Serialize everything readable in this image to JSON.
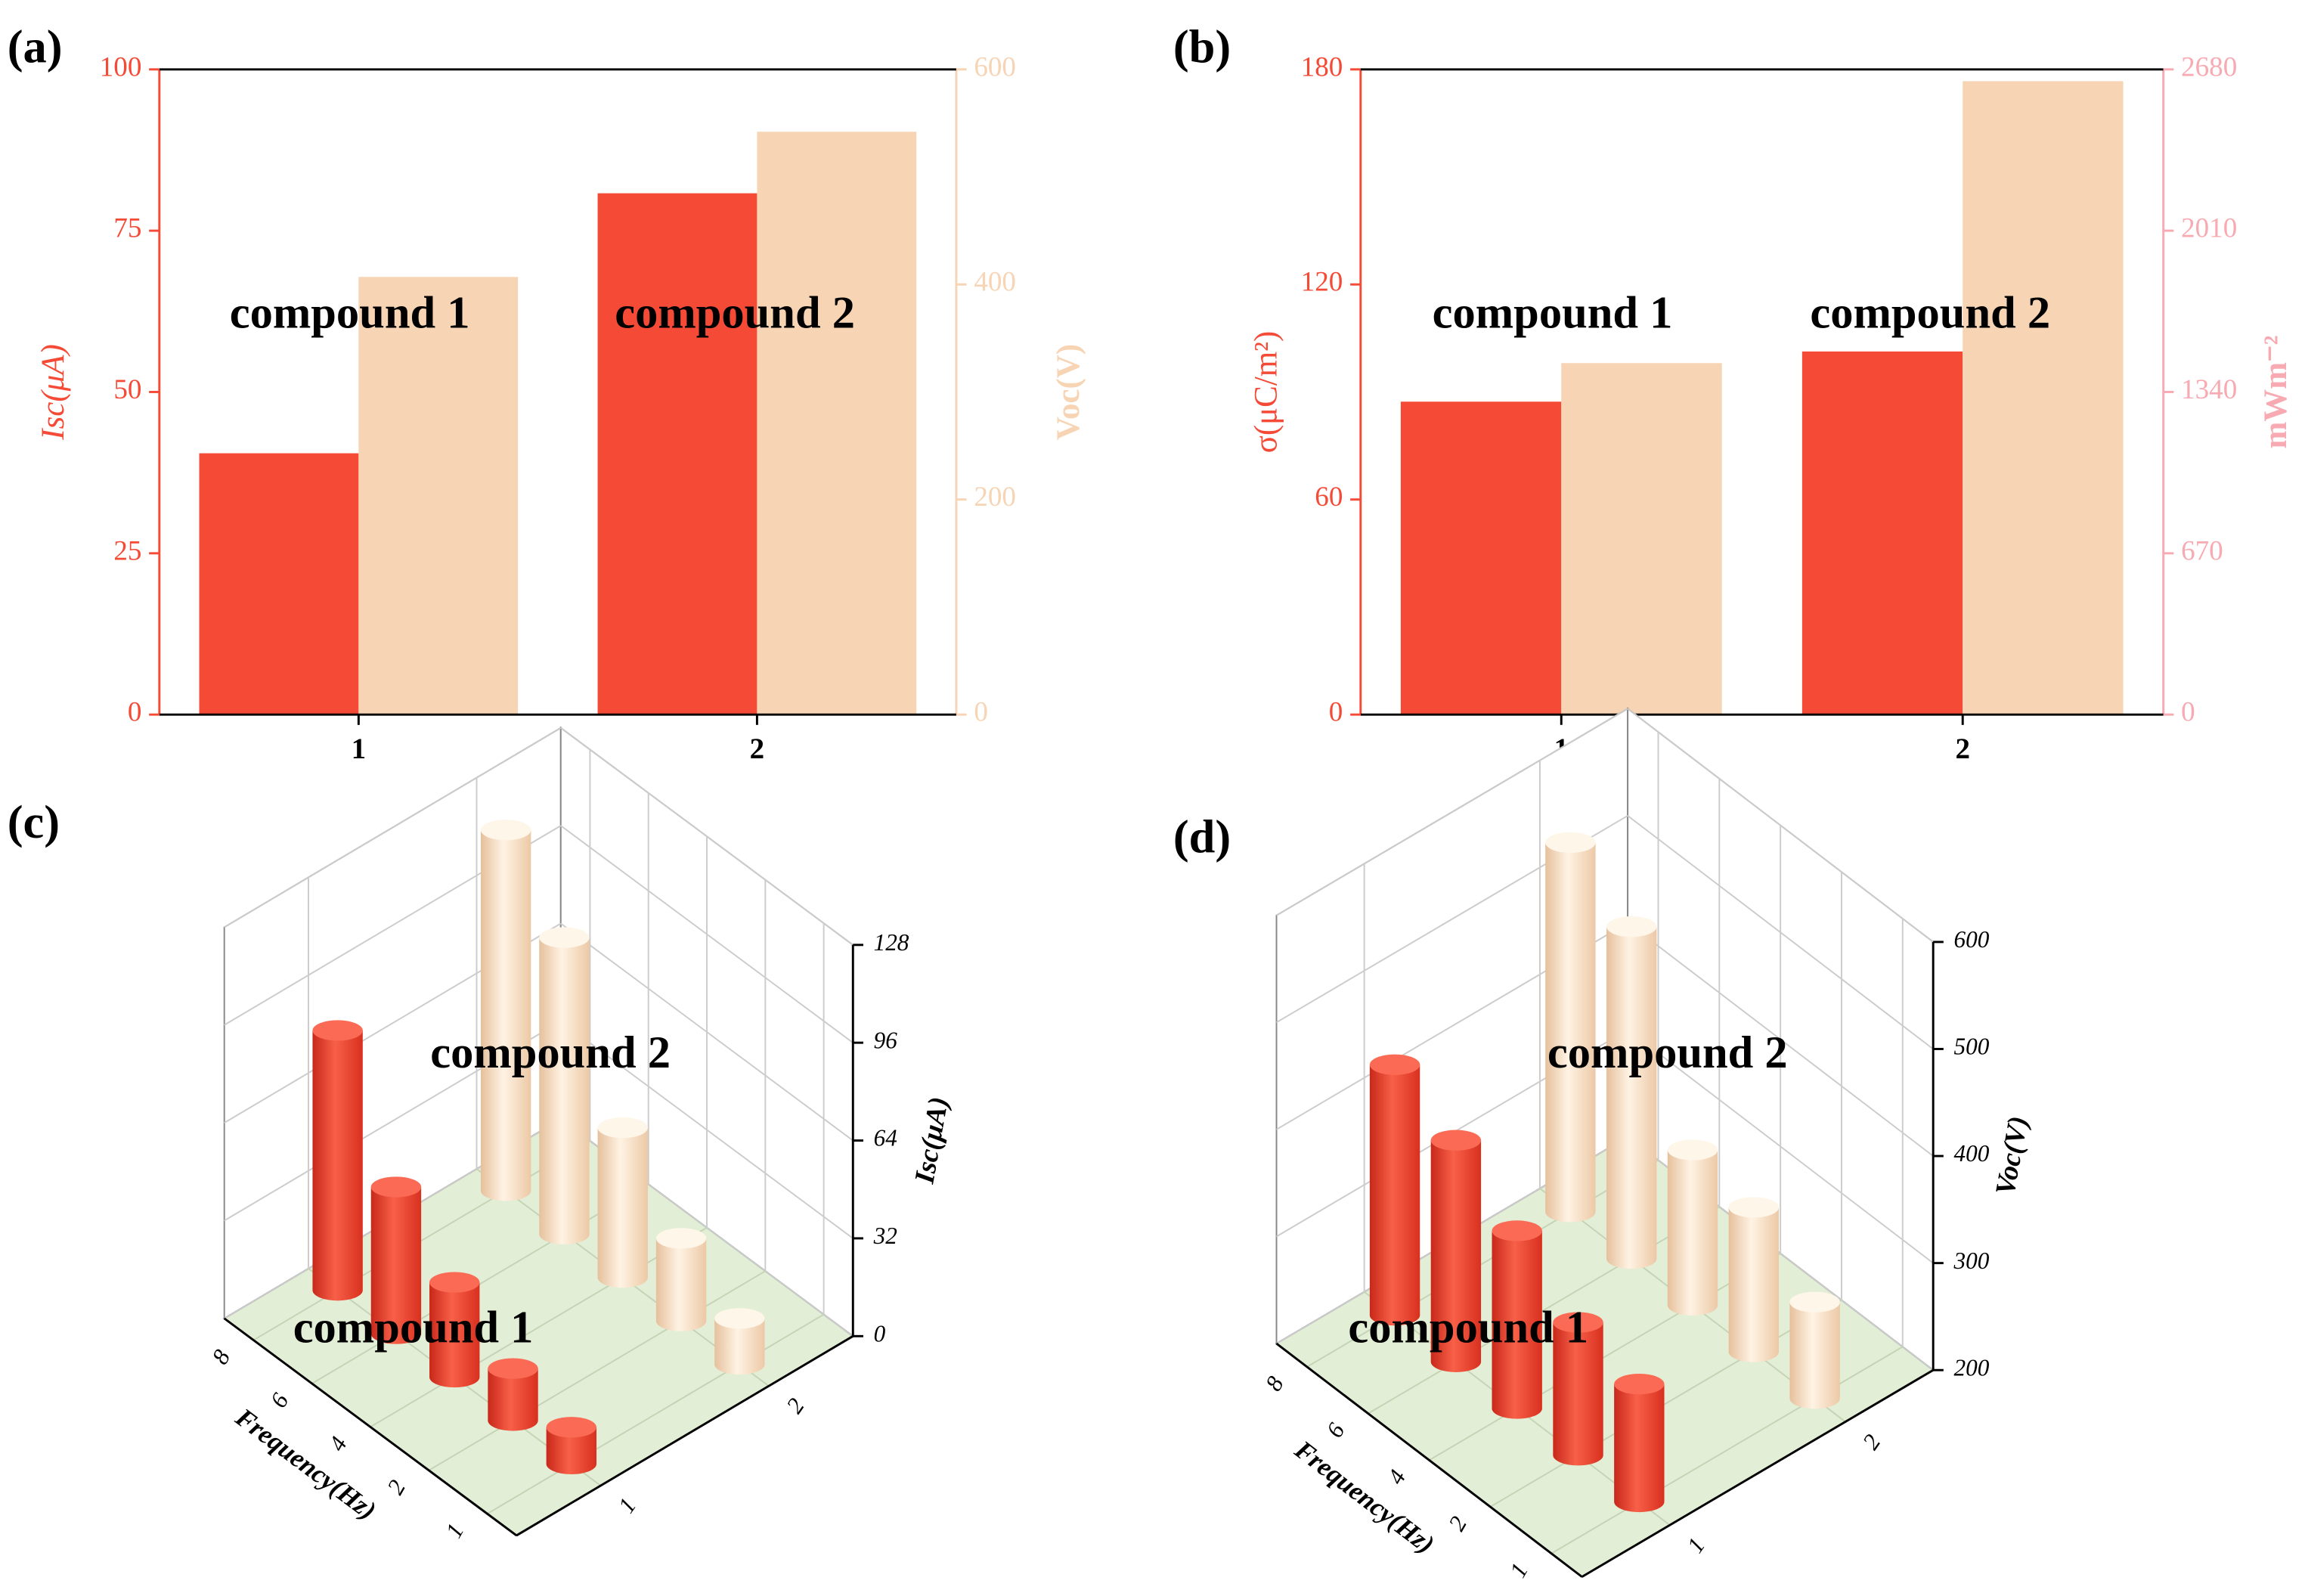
{
  "chart_data": [
    {
      "type": "bar",
      "label": "(a)",
      "categories": [
        "1",
        "2"
      ],
      "ylabel": "Isc(μA)",
      "y2label": "Voc(V)",
      "ylim": [
        0,
        100
      ],
      "yticks": [
        0,
        25,
        50,
        75,
        100
      ],
      "y2lim": [
        0,
        600
      ],
      "y2ticks": [
        0,
        200,
        400,
        600
      ],
      "ycolor": "#f44a36",
      "y2color": "#f6d4b4",
      "series": [
        {
          "color": "#f44a36",
          "values": [
            40.5,
            80.8
          ]
        },
        {
          "color": "#f6d4b4",
          "axis": "y2",
          "values": [
            407,
            542
          ]
        }
      ],
      "annotations": [
        "compound 1",
        "compound 2"
      ]
    },
    {
      "type": "bar",
      "label": "(b)",
      "categories": [
        "1",
        "2"
      ],
      "ylabel": "σ(μC/m²)",
      "y2label": "mWm⁻²",
      "ylim": [
        0,
        180
      ],
      "yticks": [
        0,
        60,
        120,
        180
      ],
      "y2lim": [
        0,
        2680
      ],
      "y2ticks": [
        0,
        670,
        1340,
        2010,
        2680
      ],
      "ycolor": "#f44a36",
      "y2color": "#f7aab2",
      "series": [
        {
          "color": "#f44a36",
          "values": [
            87.3,
            101.3
          ]
        },
        {
          "color": "#f6d4b4",
          "axis": "y2",
          "values": [
            1460,
            2631
          ]
        }
      ],
      "annotations": [
        "compound 1",
        "compound 2"
      ]
    },
    {
      "type": "bar3d",
      "label": "(c)",
      "categories": [
        "1",
        "2",
        "4",
        "6",
        "8"
      ],
      "xlabel": "Frequency(Hz)",
      "zlabel": "Isc(μA)",
      "zlim": [
        0,
        128
      ],
      "zticks": [
        0,
        32,
        64,
        96,
        128
      ],
      "series": [
        {
          "name": "1",
          "color": "#f44a36",
          "values": [
            12,
            17,
            31,
            48,
            85
          ]
        },
        {
          "name": "2",
          "color": "#f6d4b4",
          "values": [
            15,
            27,
            49,
            97,
            118
          ]
        }
      ],
      "annotations": [
        "compound 1",
        "compound 2"
      ]
    },
    {
      "type": "bar3d",
      "label": "(d)",
      "categories": [
        "1",
        "2",
        "4",
        "6",
        "8"
      ],
      "xlabel": "Frequency(Hz)",
      "zlabel": "Voc(V)",
      "zlim": [
        200,
        600
      ],
      "zticks": [
        200,
        300,
        400,
        500,
        600
      ],
      "series": [
        {
          "name": "1",
          "color": "#f44a36",
          "values": [
            310,
            324,
            366,
            407,
            434
          ]
        },
        {
          "name": "2",
          "color": "#f6d4b4",
          "values": [
            290,
            335,
            345,
            510,
            545
          ]
        }
      ],
      "annotations": [
        "compound 1",
        "compound 2"
      ]
    }
  ]
}
